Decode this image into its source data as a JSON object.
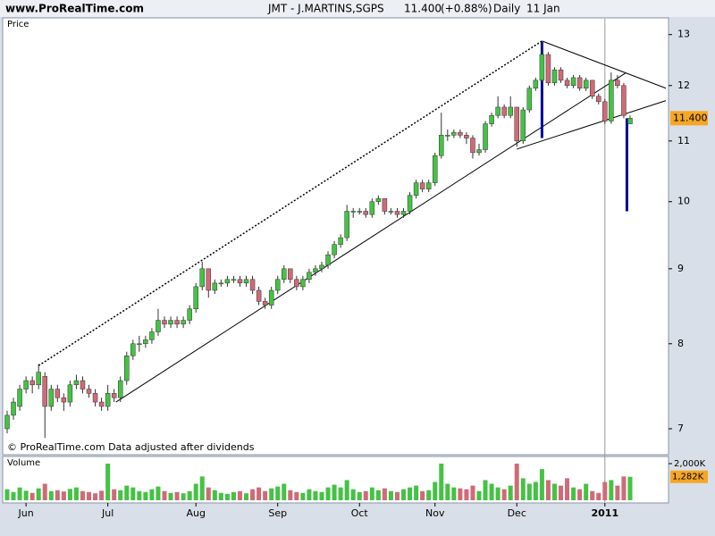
{
  "header": {
    "site": "www.ProRealTime.com",
    "symbol": "JMT - J.MARTINS,SGPS",
    "last": "11.400",
    "change": "(+0.88%)",
    "period": "Daily",
    "date": "11 Jan"
  },
  "chart_data": {
    "type": "candlestick",
    "price_label": "Price",
    "volume_label": "Volume",
    "note": "© ProRealTime.com  Data adjusted after dividends",
    "log": true,
    "up_color": "#45c245",
    "down_color": "#d06a78",
    "ylim": [
      6.73,
      13.16
    ],
    "yticks": [
      7,
      8,
      9,
      10,
      11,
      12,
      13
    ],
    "last_price": {
      "value": 11.4,
      "label": "11.400"
    },
    "categories": [
      null,
      null,
      null,
      "Jun",
      null,
      null,
      null,
      null,
      null,
      null,
      null,
      null,
      null,
      null,
      null,
      null,
      "Jul",
      null,
      null,
      null,
      null,
      null,
      null,
      null,
      null,
      null,
      null,
      null,
      null,
      null,
      "Aug",
      null,
      null,
      null,
      null,
      null,
      null,
      null,
      null,
      null,
      null,
      null,
      null,
      "Sep",
      null,
      null,
      null,
      null,
      null,
      null,
      null,
      null,
      null,
      null,
      null,
      null,
      "Oct",
      null,
      null,
      null,
      null,
      null,
      null,
      null,
      null,
      null,
      null,
      null,
      "Nov",
      null,
      null,
      null,
      null,
      null,
      null,
      null,
      null,
      null,
      null,
      null,
      null,
      "Dec",
      null,
      null,
      null,
      null,
      null,
      null,
      null,
      null,
      null,
      null,
      null,
      null,
      null,
      "2011",
      null,
      null,
      null,
      null
    ],
    "candles": [
      [
        7.0,
        7.2,
        6.95,
        7.15
      ],
      [
        7.15,
        7.35,
        7.1,
        7.3
      ],
      [
        7.25,
        7.5,
        7.2,
        7.45
      ],
      [
        7.45,
        7.6,
        7.4,
        7.55
      ],
      [
        7.55,
        7.6,
        7.4,
        7.5
      ],
      [
        7.5,
        7.75,
        7.45,
        7.65
      ],
      [
        7.6,
        7.65,
        6.9,
        7.25
      ],
      [
        7.25,
        7.5,
        7.2,
        7.45
      ],
      [
        7.45,
        7.5,
        7.3,
        7.35
      ],
      [
        7.35,
        7.4,
        7.2,
        7.3
      ],
      [
        7.3,
        7.55,
        7.25,
        7.5
      ],
      [
        7.5,
        7.62,
        7.45,
        7.55
      ],
      [
        7.55,
        7.6,
        7.4,
        7.45
      ],
      [
        7.45,
        7.5,
        7.35,
        7.4
      ],
      [
        7.4,
        7.45,
        7.25,
        7.3
      ],
      [
        7.3,
        7.35,
        7.2,
        7.25
      ],
      [
        7.25,
        7.5,
        7.2,
        7.4
      ],
      [
        7.4,
        7.45,
        7.3,
        7.35
      ],
      [
        7.35,
        7.6,
        7.3,
        7.55
      ],
      [
        7.55,
        7.9,
        7.5,
        7.85
      ],
      [
        7.85,
        8.05,
        7.8,
        8.0
      ],
      [
        8.0,
        8.1,
        7.9,
        8.0
      ],
      [
        8.0,
        8.1,
        7.95,
        8.05
      ],
      [
        8.05,
        8.2,
        8.0,
        8.15
      ],
      [
        8.15,
        8.45,
        8.1,
        8.3
      ],
      [
        8.3,
        8.35,
        8.2,
        8.25
      ],
      [
        8.25,
        8.35,
        8.2,
        8.3
      ],
      [
        8.3,
        8.35,
        8.2,
        8.25
      ],
      [
        8.25,
        8.35,
        8.2,
        8.3
      ],
      [
        8.3,
        8.5,
        8.25,
        8.45
      ],
      [
        8.45,
        8.8,
        8.4,
        8.75
      ],
      [
        8.75,
        9.1,
        8.7,
        9.0
      ],
      [
        9.0,
        9.0,
        8.6,
        8.7
      ],
      [
        8.7,
        8.85,
        8.65,
        8.8
      ],
      [
        8.8,
        8.85,
        8.75,
        8.8
      ],
      [
        8.8,
        8.9,
        8.75,
        8.85
      ],
      [
        8.85,
        8.9,
        8.8,
        8.85
      ],
      [
        8.85,
        8.9,
        8.75,
        8.8
      ],
      [
        8.8,
        8.9,
        8.75,
        8.85
      ],
      [
        8.85,
        8.9,
        8.65,
        8.7
      ],
      [
        8.7,
        8.75,
        8.5,
        8.55
      ],
      [
        8.55,
        8.6,
        8.45,
        8.5
      ],
      [
        8.5,
        8.75,
        8.45,
        8.7
      ],
      [
        8.7,
        8.9,
        8.65,
        8.85
      ],
      [
        8.85,
        9.05,
        8.8,
        9.0
      ],
      [
        9.0,
        9.0,
        8.8,
        8.85
      ],
      [
        8.85,
        8.9,
        8.7,
        8.75
      ],
      [
        8.75,
        8.9,
        8.7,
        8.85
      ],
      [
        8.85,
        9.0,
        8.8,
        8.95
      ],
      [
        8.95,
        9.05,
        8.9,
        9.0
      ],
      [
        9.0,
        9.1,
        8.95,
        9.05
      ],
      [
        9.05,
        9.25,
        9.0,
        9.2
      ],
      [
        9.2,
        9.4,
        9.15,
        9.35
      ],
      [
        9.35,
        9.5,
        9.3,
        9.45
      ],
      [
        9.45,
        9.95,
        9.4,
        9.85
      ],
      [
        9.85,
        9.9,
        9.75,
        9.85
      ],
      [
        9.85,
        9.9,
        9.8,
        9.85
      ],
      [
        9.85,
        9.9,
        9.75,
        9.8
      ],
      [
        9.8,
        10.05,
        9.75,
        10.0
      ],
      [
        10.0,
        10.1,
        9.95,
        10.05
      ],
      [
        10.05,
        10.05,
        9.8,
        9.85
      ],
      [
        9.85,
        9.9,
        9.8,
        9.85
      ],
      [
        9.85,
        9.9,
        9.75,
        9.8
      ],
      [
        9.8,
        9.9,
        9.75,
        9.85
      ],
      [
        9.85,
        10.15,
        9.8,
        10.1
      ],
      [
        10.1,
        10.35,
        10.05,
        10.3
      ],
      [
        10.3,
        10.35,
        10.15,
        10.2
      ],
      [
        10.2,
        10.35,
        10.15,
        10.3
      ],
      [
        10.3,
        10.8,
        10.25,
        10.75
      ],
      [
        10.75,
        11.5,
        10.7,
        11.1
      ],
      [
        11.1,
        11.2,
        11.0,
        11.1
      ],
      [
        11.1,
        11.2,
        11.05,
        11.15
      ],
      [
        11.15,
        11.2,
        11.05,
        11.1
      ],
      [
        11.1,
        11.15,
        10.95,
        11.05
      ],
      [
        11.05,
        11.1,
        10.7,
        10.8
      ],
      [
        10.8,
        10.95,
        10.75,
        10.85
      ],
      [
        10.85,
        11.35,
        10.8,
        11.3
      ],
      [
        11.3,
        11.5,
        11.25,
        11.45
      ],
      [
        11.45,
        11.8,
        11.4,
        11.6
      ],
      [
        11.6,
        11.65,
        11.4,
        11.45
      ],
      [
        11.45,
        11.8,
        11.4,
        11.6
      ],
      [
        11.6,
        11.6,
        10.9,
        11.0
      ],
      [
        11.0,
        11.6,
        10.95,
        11.55
      ],
      [
        11.55,
        12.0,
        11.5,
        11.95
      ],
      [
        11.95,
        12.15,
        11.9,
        12.1
      ],
      [
        12.1,
        12.85,
        12.05,
        12.6
      ],
      [
        12.6,
        12.65,
        12.0,
        12.05
      ],
      [
        12.05,
        12.35,
        12.0,
        12.3
      ],
      [
        12.3,
        12.35,
        12.05,
        12.1
      ],
      [
        12.1,
        12.15,
        11.95,
        12.0
      ],
      [
        12.0,
        12.2,
        11.95,
        12.15
      ],
      [
        12.15,
        12.2,
        11.9,
        11.95
      ],
      [
        11.95,
        12.15,
        11.9,
        12.1
      ],
      [
        12.1,
        12.1,
        11.75,
        11.8
      ],
      [
        11.8,
        11.85,
        11.65,
        11.7
      ],
      [
        11.7,
        11.75,
        11.3,
        11.35
      ],
      [
        11.35,
        12.25,
        11.3,
        12.1
      ],
      [
        12.1,
        12.2,
        11.95,
        12.0
      ],
      [
        12.0,
        12.05,
        11.4,
        11.45
      ],
      [
        11.3,
        11.45,
        11.3,
        11.4
      ]
    ],
    "volume": [
      600,
      450,
      700,
      520,
      400,
      650,
      900,
      500,
      550,
      480,
      620,
      700,
      500,
      450,
      380,
      520,
      2000,
      600,
      550,
      800,
      700,
      500,
      450,
      600,
      750,
      500,
      400,
      450,
      380,
      500,
      900,
      1300,
      700,
      550,
      400,
      350,
      450,
      500,
      380,
      600,
      700,
      500,
      650,
      750,
      900,
      550,
      450,
      400,
      600,
      500,
      450,
      700,
      850,
      700,
      1100,
      600,
      450,
      500,
      700,
      550,
      650,
      500,
      450,
      600,
      700,
      800,
      500,
      550,
      1000,
      2000,
      900,
      700,
      650,
      600,
      800,
      500,
      1100,
      900,
      700,
      600,
      800,
      2000,
      1200,
      900,
      1000,
      1700,
      1100,
      900,
      800,
      1200,
      700,
      600,
      900,
      500,
      400,
      1000,
      1100,
      800,
      1300,
      1282
    ],
    "volume_value_label": "1,282K",
    "volume_ylim": [
      0,
      2340
    ],
    "volume_yticks": [
      {
        "value": 2000,
        "label": "2,000K"
      }
    ],
    "trendlines": [
      {
        "points": [
          [
            5,
            7.73
          ],
          [
            85,
            12.87
          ]
        ],
        "color": "#000000",
        "style": "dotted",
        "width": 1.5
      },
      {
        "points": [
          [
            17.3,
            7.3
          ],
          [
            98.3,
            12.24
          ]
        ],
        "color": "#000000",
        "style": "solid",
        "width": 1
      },
      {
        "points": [
          [
            85,
            12.87
          ],
          [
            104.7,
            11.95
          ]
        ],
        "color": "#000000",
        "style": "solid",
        "width": 1
      },
      {
        "points": [
          [
            81,
            10.86
          ],
          [
            104.7,
            11.72
          ]
        ],
        "color": "#000000",
        "style": "solid",
        "width": 1
      },
      {
        "points": [
          [
            85,
            12.85
          ],
          [
            85,
            11.05
          ]
        ],
        "color": "#000099",
        "style": "solid",
        "width": 3
      },
      {
        "points": [
          [
            98.5,
            11.4
          ],
          [
            98.5,
            9.85
          ]
        ],
        "color": "#000099",
        "style": "solid",
        "width": 3
      }
    ]
  }
}
